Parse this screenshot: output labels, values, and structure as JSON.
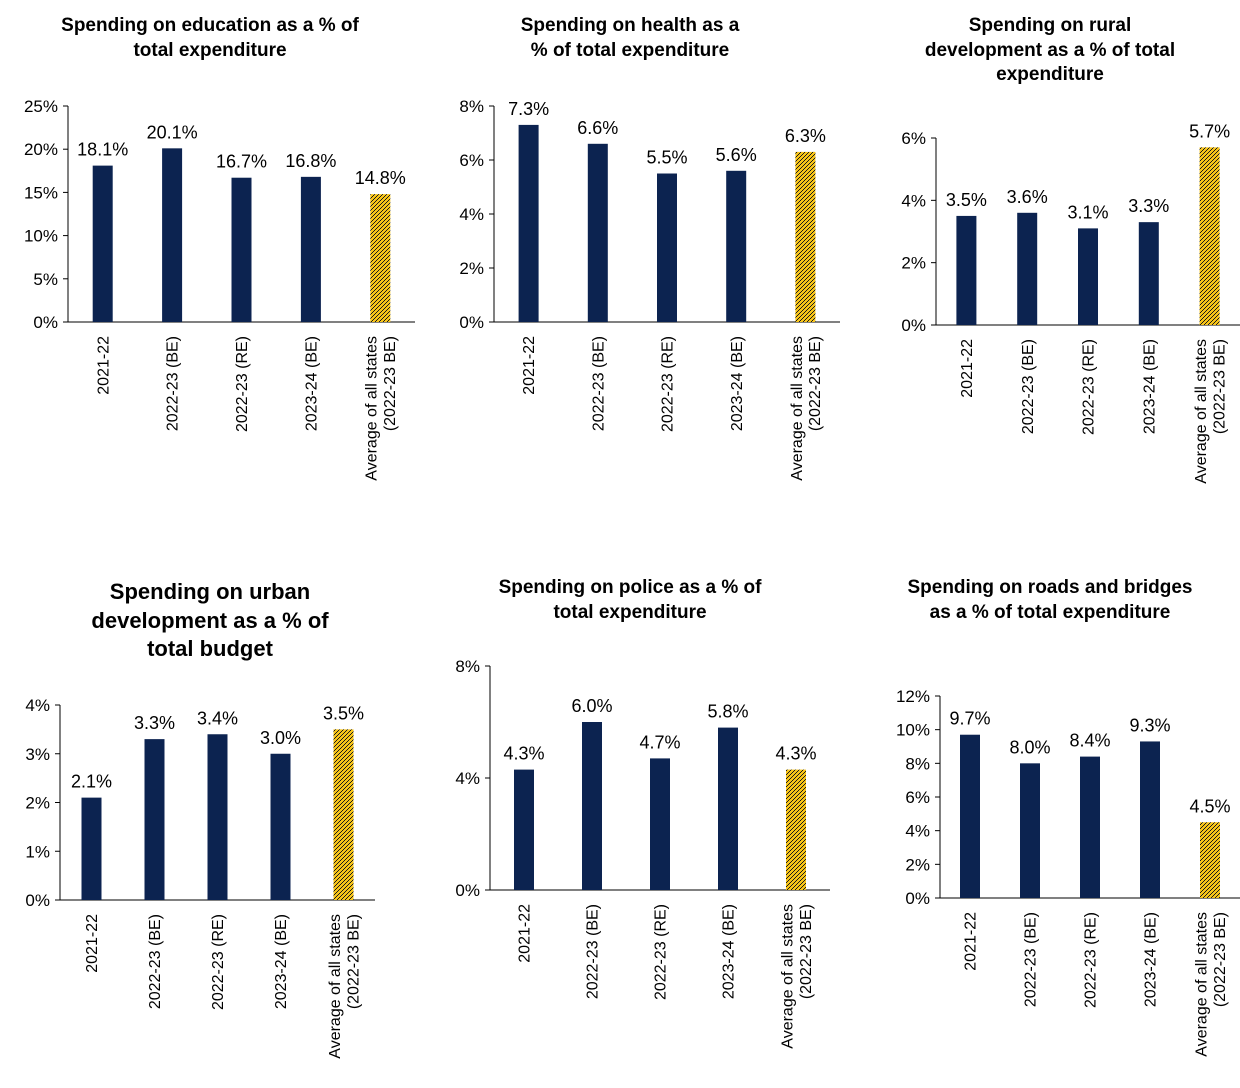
{
  "colors": {
    "bar": "#0c2350",
    "highlight_fill": "#f7c418",
    "highlight_pattern": "#1a1a1a",
    "axis": "#000000"
  },
  "chart_data": [
    {
      "type": "bar",
      "title": "Spending on education as a % of total expenditure",
      "categories": [
        "2021-22",
        "2022-23 (BE)",
        "2022-23 (RE)",
        "2023-24 (BE)",
        "Average of all states (2022-23 BE)"
      ],
      "values": [
        18.1,
        20.1,
        16.7,
        16.8,
        14.8
      ],
      "data_labels": [
        "18.1%",
        "20.1%",
        "16.7%",
        "16.8%",
        "14.8%"
      ],
      "ylim": [
        0,
        25
      ],
      "yticks": [
        0,
        5,
        10,
        15,
        20,
        25
      ],
      "ytick_labels": [
        "0%",
        "5%",
        "10%",
        "15%",
        "20%",
        "25%"
      ],
      "highlighted_category": "Average of all states (2022-23 BE)",
      "grid": false
    },
    {
      "type": "bar",
      "title": "Spending on health as a % of total expenditure",
      "categories": [
        "2021-22",
        "2022-23 (BE)",
        "2022-23 (RE)",
        "2023-24 (BE)",
        "Average of all states (2022-23 BE)"
      ],
      "values": [
        7.3,
        6.6,
        5.5,
        5.6,
        6.3
      ],
      "data_labels": [
        "7.3%",
        "6.6%",
        "5.5%",
        "5.6%",
        "6.3%"
      ],
      "ylim": [
        0,
        8
      ],
      "yticks": [
        0,
        2,
        4,
        6,
        8
      ],
      "ytick_labels": [
        "0%",
        "2%",
        "4%",
        "6%",
        "8%"
      ],
      "highlighted_category": "Average of all states (2022-23 BE)",
      "grid": false
    },
    {
      "type": "bar",
      "title": "Spending on rural development as a % of total expenditure",
      "categories": [
        "2021-22",
        "2022-23 (BE)",
        "2022-23 (RE)",
        "2023-24 (BE)",
        "Average of all states (2022-23 BE)"
      ],
      "values": [
        3.5,
        3.6,
        3.1,
        3.3,
        5.7
      ],
      "data_labels": [
        "3.5%",
        "3.6%",
        "3.1%",
        "3.3%",
        "5.7%"
      ],
      "ylim": [
        0,
        6
      ],
      "yticks": [
        0,
        2,
        4,
        6
      ],
      "ytick_labels": [
        "0%",
        "2%",
        "4%",
        "6%"
      ],
      "highlighted_category": "Average of all states (2022-23 BE)",
      "grid": false
    },
    {
      "type": "bar",
      "title": "Spending on urban development as a % of total budget",
      "categories": [
        "2021-22",
        "2022-23 (BE)",
        "2022-23 (RE)",
        "2023-24 (BE)",
        "Average of all states (2022-23 BE)"
      ],
      "values": [
        2.1,
        3.3,
        3.4,
        3.0,
        3.5
      ],
      "data_labels": [
        "2.1%",
        "3.3%",
        "3.4%",
        "3.0%",
        "3.5%"
      ],
      "ylim": [
        0,
        4
      ],
      "yticks": [
        0,
        1,
        2,
        3,
        4
      ],
      "ytick_labels": [
        "0%",
        "1%",
        "2%",
        "3%",
        "4%"
      ],
      "highlighted_category": "Average of all states (2022-23 BE)",
      "grid": false
    },
    {
      "type": "bar",
      "title": "Spending on police as a % of total expenditure",
      "categories": [
        "2021-22",
        "2022-23 (BE)",
        "2022-23 (RE)",
        "2023-24 (BE)",
        "Average of all states (2022-23 BE)"
      ],
      "values": [
        4.3,
        6.0,
        4.7,
        5.8,
        4.3
      ],
      "data_labels": [
        "4.3%",
        "6.0%",
        "4.7%",
        "5.8%",
        "4.3%"
      ],
      "ylim": [
        0,
        8
      ],
      "yticks": [
        0,
        4,
        8
      ],
      "ytick_labels": [
        "0%",
        "4%",
        "8%"
      ],
      "highlighted_category": "Average of all states (2022-23 BE)",
      "grid": false
    },
    {
      "type": "bar",
      "title": "Spending on roads and bridges as a % of total expenditure",
      "categories": [
        "2021-22",
        "2022-23 (BE)",
        "2022-23 (RE)",
        "2023-24 (BE)",
        "Average of all states (2022-23 BE)"
      ],
      "values": [
        9.7,
        8.0,
        8.4,
        9.3,
        4.5
      ],
      "data_labels": [
        "9.7%",
        "8.0%",
        "8.4%",
        "9.3%",
        "4.5%"
      ],
      "ylim": [
        0,
        12
      ],
      "yticks": [
        0,
        2,
        4,
        6,
        8,
        10,
        12
      ],
      "ytick_labels": [
        "0%",
        "2%",
        "4%",
        "6%",
        "8%",
        "10%",
        "12%"
      ],
      "highlighted_category": "Average of all states (2022-23 BE)",
      "grid": false
    }
  ]
}
